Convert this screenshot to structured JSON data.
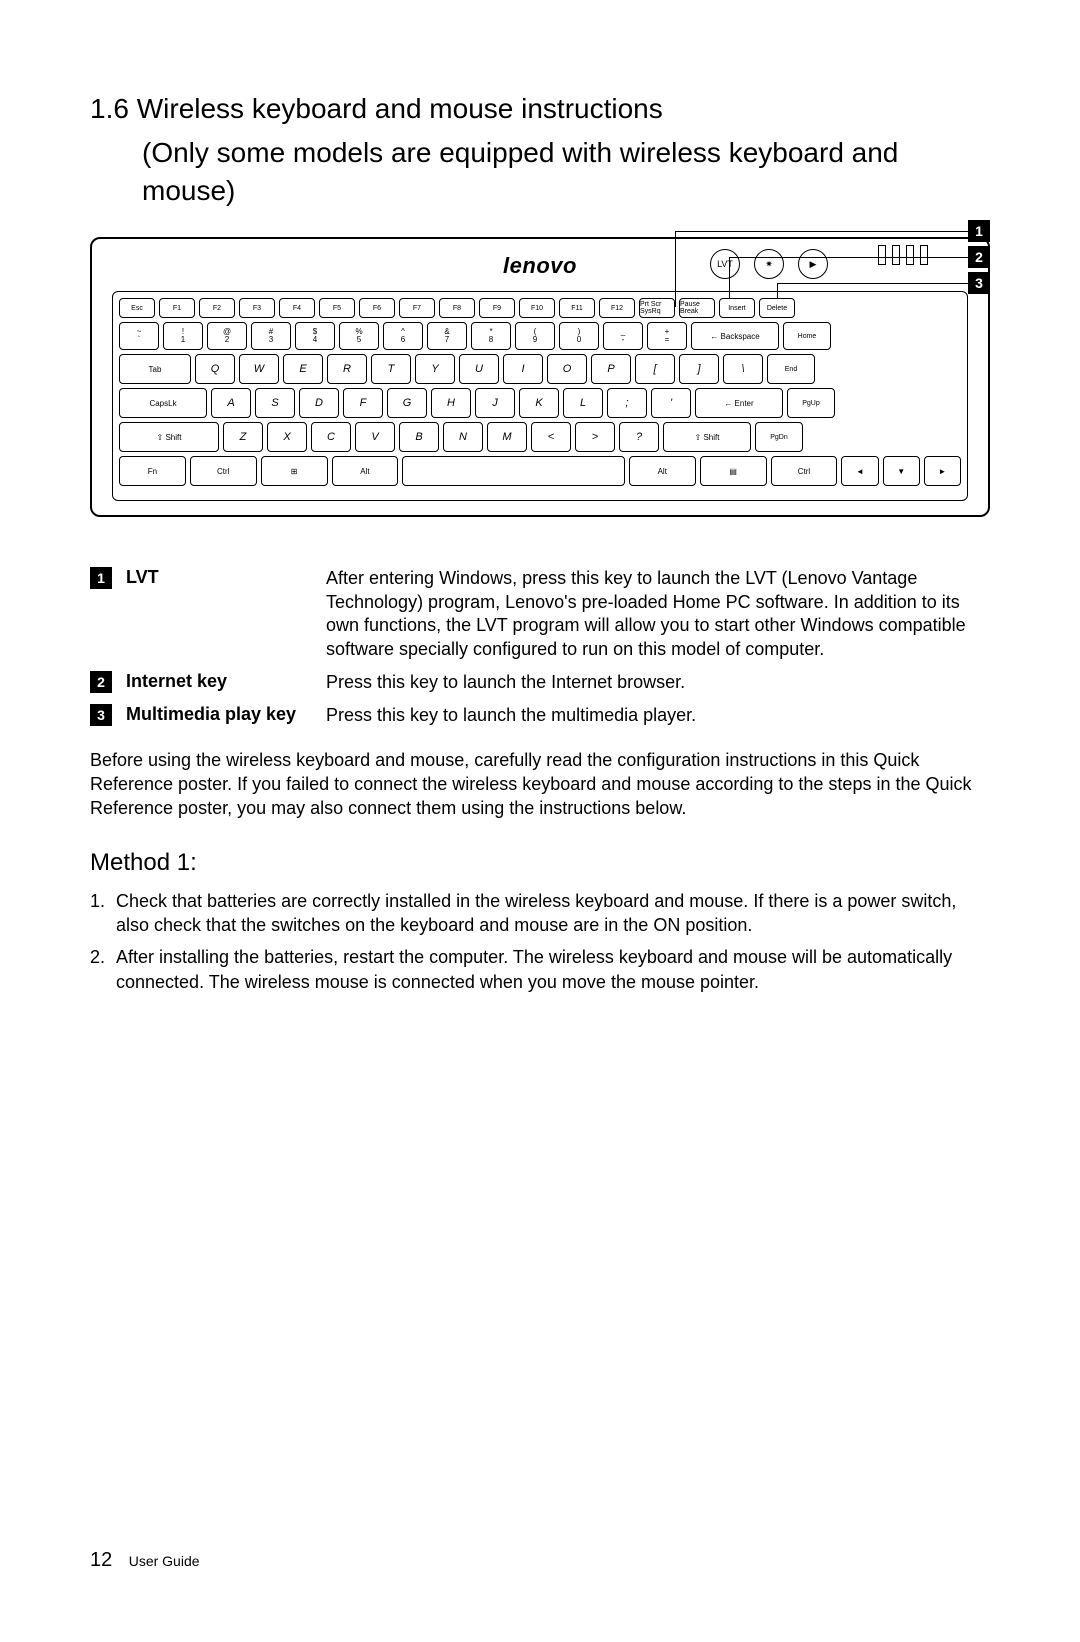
{
  "section": {
    "number": "1.6",
    "title": "Wireless keyboard and mouse instructions",
    "subtitle": "(Only some models are equipped with wireless keyboard and mouse)"
  },
  "keyboard": {
    "logo": "lenovo",
    "round_buttons": [
      "LVT",
      "✷",
      "▶"
    ],
    "fn_row": [
      "Esc",
      "F1",
      "F2",
      "F3",
      "F4",
      "F5",
      "F6",
      "F7",
      "F8",
      "F9",
      "F10",
      "F11",
      "F12",
      "Prt Scr SysRq",
      "Pause Break",
      "Insert",
      "Delete"
    ],
    "num_row_top": [
      "~",
      "!",
      "@",
      "#",
      "$",
      "%",
      "^",
      "&",
      "*",
      "(",
      ")",
      "_",
      "+"
    ],
    "num_row_bot": [
      "`",
      "1",
      "2",
      "3",
      "4",
      "5",
      "6",
      "7",
      "8",
      "9",
      "0",
      "-",
      "="
    ],
    "num_row_right": [
      "← Backspace",
      "Home"
    ],
    "qwerty": [
      "Q",
      "W",
      "E",
      "R",
      "T",
      "Y",
      "U",
      "I",
      "O",
      "P",
      "[",
      "]",
      "\\"
    ],
    "qwerty_left": "Tab",
    "qwerty_right": "End",
    "asdf_left": "CapsLk",
    "asdf": [
      "A",
      "S",
      "D",
      "F",
      "G",
      "H",
      "J",
      "K",
      "L",
      ";",
      "'"
    ],
    "asdf_enter": "← Enter",
    "asdf_right": "PgUp",
    "zxcv_left": "⇧ Shift",
    "zxcv": [
      "Z",
      "X",
      "C",
      "V",
      "B",
      "N",
      "M",
      "<",
      ">",
      "?"
    ],
    "zxcv_shift2": "⇧ Shift",
    "zxcv_right": "PgDn",
    "bottom": [
      "Fn",
      "Ctrl",
      "⊞",
      "Alt",
      " ",
      "Alt",
      "▤",
      "Ctrl",
      "◄",
      "▼",
      "►"
    ]
  },
  "callouts": {
    "items": [
      {
        "num": "1",
        "label": "LVT",
        "desc": "After entering Windows, press this key to launch the LVT (Lenovo Vantage Technology) program, Lenovo's pre-loaded Home PC software. In addition to its own functions, the LVT program will allow you to start other Windows compatible software specially configured to run on this model of computer."
      },
      {
        "num": "2",
        "label": "Internet key",
        "desc": "Press this key to launch the Internet browser."
      },
      {
        "num": "3",
        "label": "Multimedia play key",
        "desc": "Press this key to launch the multimedia player."
      }
    ]
  },
  "intro_para": "Before using the wireless keyboard and mouse, carefully read the configuration instructions in this Quick Reference poster. If you failed to connect the wireless keyboard and mouse according to the steps in the Quick Reference poster, you may also connect them using the instructions below.",
  "method": {
    "title": "Method 1:",
    "steps": [
      "Check that batteries are correctly installed in the wireless keyboard and mouse. If there is a power switch, also check that the switches on the keyboard and mouse are in the ON position.",
      "After installing the batteries, restart the computer. The wireless keyboard and mouse will be automatically connected. The wireless mouse is connected when you move the mouse pointer."
    ]
  },
  "footer": {
    "page": "12",
    "label": "User Guide"
  },
  "colors": {
    "black": "#000000",
    "white": "#ffffff"
  }
}
